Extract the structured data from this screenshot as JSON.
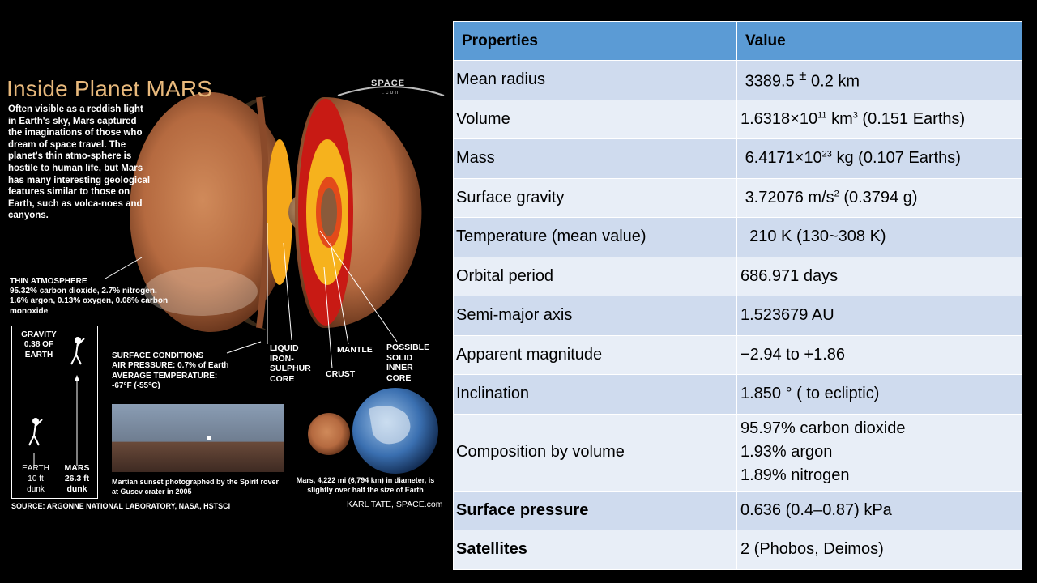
{
  "infographic": {
    "title": "Inside Planet MARS",
    "logo": "SPACE",
    "logo_sub": ".com",
    "intro": "Often visible as a reddish light in Earth's sky, Mars captured the imaginations of those who dream of space travel. The planet's thin atmo-sphere is hostile to human life, but Mars has many interesting geological features similar to those on Earth, such as volca-noes and canyons.",
    "atmosphere_heading": "THIN ATMOSPHERE",
    "atmosphere_text": "95.32% carbon dioxide, 2.7% nitrogen, 1.6% argon, 0.13% oxygen, 0.08% carbon monoxide",
    "surface_lines": [
      "SURFACE CONDITIONS",
      "AIR PRESSURE: 0.7% of Earth",
      "AVERAGE TEMPERATURE:",
      "-67°F (-55°C)"
    ],
    "labels": {
      "liquid_core": [
        "LIQUID",
        "IRON-",
        "SULPHUR",
        "CORE"
      ],
      "crust": "CRUST",
      "mantle": "MANTLE",
      "solid_core": [
        "POSSIBLE",
        "SOLID",
        "INNER",
        "CORE"
      ]
    },
    "gravity": [
      "GRAVITY",
      "0.38 OF",
      "EARTH"
    ],
    "earth_dunk": [
      "EARTH",
      "10 ft",
      "dunk"
    ],
    "mars_dunk": [
      "MARS",
      "26.3 ft",
      "dunk"
    ],
    "photo_caption": "Martian sunset photographed by the Spirit rover at Gusev crater in 2005",
    "size_caption": "Mars, 4,222 mi (6,794 km) in diameter, is slightly over half the size of Earth",
    "source": "SOURCE: ARGONNE NATIONAL LABORATORY, NASA, HSTSCI",
    "credit": "KARL TATE, SPACE.com"
  },
  "table": {
    "headers": [
      "Properties",
      "Value"
    ],
    "rows": [
      {
        "property": "Mean radius",
        "value_pre": "3389.5 ",
        "value_sup": "±",
        "value_post": " 0.2 km"
      },
      {
        "property": "Volume",
        "value_pre": "1.6318×10",
        "value_sup": "11",
        "value_mid": " km",
        "value_sup2": "3",
        "value_post": " (0.151   Earths)"
      },
      {
        "property": "Mass",
        "value_pre": "6.4171×10",
        "value_sup": "23",
        "value_post": " kg  (0.107  Earths)"
      },
      {
        "property": "Surface gravity",
        "value_pre": "3.72076 m/s",
        "value_sup": "2",
        "value_post": " (0.3794  g)"
      },
      {
        "property": "Temperature (mean value)",
        "value": "210 K  (130~308 K)"
      },
      {
        "property": "Orbital period",
        "value": "686.971 days"
      },
      {
        "property": "Semi-major axis",
        "value": "1.523679 AU"
      },
      {
        "property": "Apparent magnitude",
        "value": "−2.94 to +1.86"
      },
      {
        "property": "Inclination",
        "value": "1.850 ° ( to ecliptic)"
      },
      {
        "property": "Composition by volume",
        "values": [
          "95.97% carbon dioxide",
          "1.93% argon",
          "1.89% nitrogen"
        ]
      },
      {
        "property": "Surface pressure",
        "value": "0.636 (0.4–0.87) kPa"
      },
      {
        "property": "Satellites",
        "value": "2 (Phobos, Deimos)"
      }
    ]
  }
}
